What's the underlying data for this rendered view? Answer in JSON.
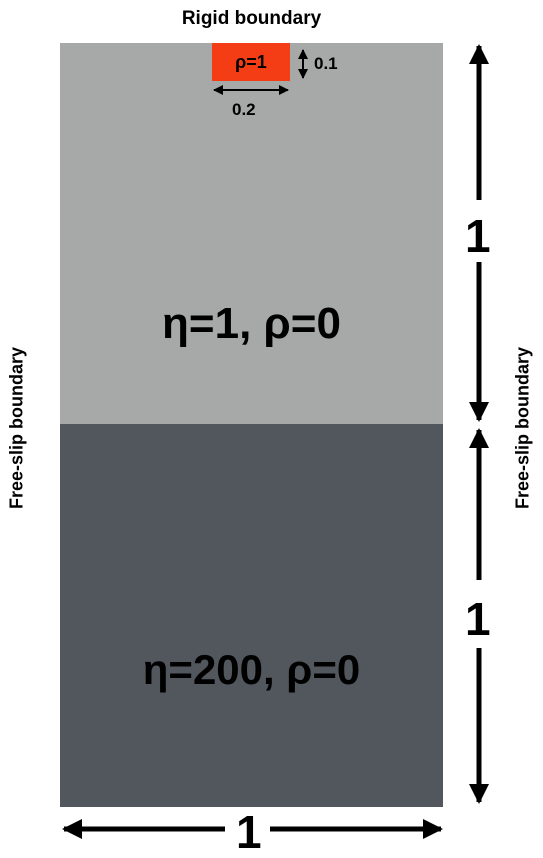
{
  "labels": {
    "top_boundary": "Rigid boundary",
    "left_boundary": "Free-slip boundary",
    "right_boundary": "Free-slip boundary"
  },
  "layers": {
    "upper": {
      "label": "η=1, ρ=0",
      "color": "#a7a9a8"
    },
    "lower": {
      "label": "η=200, ρ=0",
      "color": "#52565d"
    }
  },
  "block": {
    "label": "ρ=1",
    "color": "#f43d14",
    "width_label": "0.2",
    "height_label": "0.1"
  },
  "dimensions": {
    "upper_height": "1",
    "lower_height": "1",
    "width": "1"
  }
}
